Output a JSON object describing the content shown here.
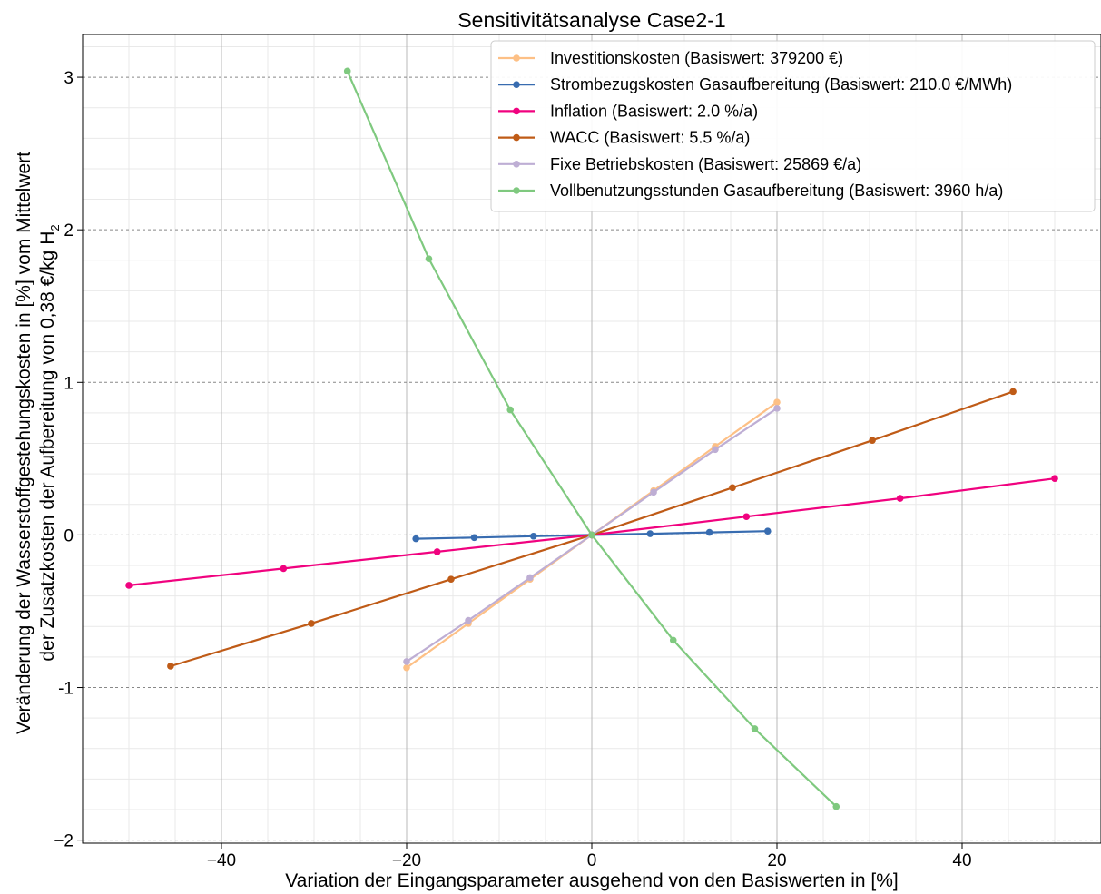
{
  "chart_data": {
    "type": "line",
    "title": "Sensitivitätsanalyse Case2-1",
    "xlabel": "Variation der Eingangsparameter ausgehend von den Basiswerten in [%]",
    "ylabel_line1": "Veränderung der Wasserstoffgestehungskosten in [%] vom Mittelwert",
    "ylabel_line2": "der Zusatzkosten der Aufbereitung von 0,38 €/kg H",
    "ylabel_subscript": "2",
    "xlim": [
      -55,
      55
    ],
    "ylim": [
      -2.02,
      3.28
    ],
    "x_ticks": [
      -40,
      -20,
      0,
      20,
      40
    ],
    "x_tick_labels": [
      "−40",
      "−20",
      "0",
      "20",
      "40"
    ],
    "y_ticks": [
      -2,
      -1,
      0,
      1,
      2,
      3
    ],
    "y_tick_labels": [
      "−2",
      "-1",
      "0",
      "1",
      "2",
      "3"
    ],
    "grid": true,
    "legend_position": "top-right",
    "series": [
      {
        "name": "Investitionskosten (Basiswert: 379200 €)",
        "color": "#fdc086",
        "x": [
          -20,
          -13.33,
          -6.67,
          0,
          6.67,
          13.33,
          20
        ],
        "y": [
          -0.87,
          -0.58,
          -0.29,
          0,
          0.29,
          0.58,
          0.87
        ]
      },
      {
        "name": "Strombezugskosten Gasaufbereitung (Basiswert: 210.0 €/MWh)",
        "color": "#386cb0",
        "x": [
          -19,
          -12.7,
          -6.3,
          0,
          6.3,
          12.7,
          19
        ],
        "y": [
          -0.025,
          -0.017,
          -0.008,
          0,
          0.008,
          0.017,
          0.025
        ]
      },
      {
        "name": "Inflation (Basiswert: 2.0 %/a)",
        "color": "#f0027f",
        "x": [
          -50,
          -33.3,
          -16.7,
          0,
          16.7,
          33.3,
          50
        ],
        "y": [
          -0.33,
          -0.22,
          -0.11,
          0,
          0.12,
          0.24,
          0.37
        ]
      },
      {
        "name": "WACC (Basiswert: 5.5 %/a)",
        "color": "#bf5b17",
        "x": [
          -45.5,
          -30.3,
          -15.2,
          0,
          15.2,
          30.3,
          45.5
        ],
        "y": [
          -0.86,
          -0.58,
          -0.29,
          0,
          0.31,
          0.62,
          0.94
        ]
      },
      {
        "name": "Fixe Betriebskosten (Basiswert: 25869 €/a)",
        "color": "#beaed4",
        "x": [
          -20,
          -13.33,
          -6.67,
          0,
          6.67,
          13.33,
          20
        ],
        "y": [
          -0.83,
          -0.56,
          -0.28,
          0,
          0.28,
          0.56,
          0.83
        ]
      },
      {
        "name": "Vollbenutzungsstunden Gasaufbereitung (Basiswert: 3960 h/a)",
        "color": "#7fc97f",
        "x": [
          -26.4,
          -17.6,
          -8.8,
          0,
          8.8,
          17.6,
          26.4
        ],
        "y": [
          3.04,
          1.81,
          0.82,
          0,
          -0.69,
          -1.27,
          -1.78
        ]
      }
    ]
  }
}
